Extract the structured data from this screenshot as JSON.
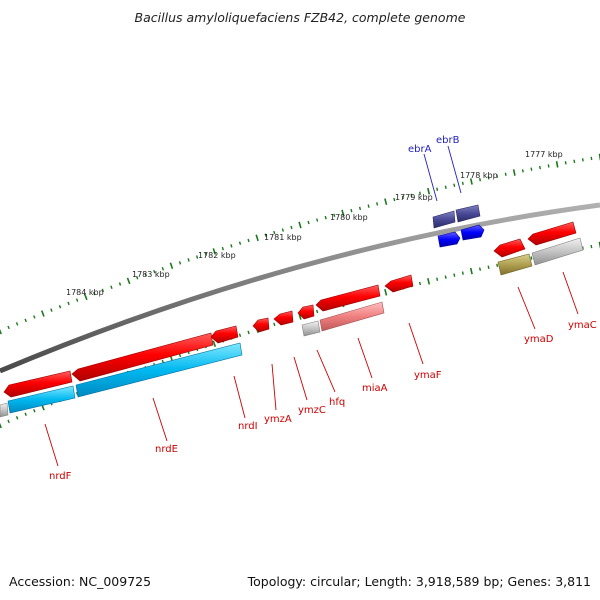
{
  "title": "Bacillus amyloliquefaciens FZB42, complete genome",
  "footer": {
    "accession": "Accession: NC_009725",
    "summary": "Topology: circular; Length: 3,918,589 bp; Genes: 3,811"
  },
  "colors": {
    "backbone": "#7a7a7a",
    "tick": "#1a7a1a",
    "forward_label": "#2222bb",
    "reverse_label": "#cc0000"
  },
  "kbp_labels": [
    "1784 kbp",
    "1783 kbp",
    "1782 kbp",
    "1781 kbp",
    "1780 kbp",
    "1779 kbp",
    "1778 kbp",
    "1777 kbp"
  ],
  "genes_forward": [
    {
      "name": "ebrA",
      "color": "#3b3b8c"
    },
    {
      "name": "ebrB",
      "color": "#3b3b8c"
    }
  ],
  "genes_reverse": [
    {
      "name": "nrdF",
      "color": "#ff0000"
    },
    {
      "name": "nrdE",
      "color": "#ff0000"
    },
    {
      "name": "nrdI",
      "color": "#ff0000"
    },
    {
      "name": "ymzA",
      "color": "#ff0000"
    },
    {
      "name": "ymzC",
      "color": "#ff0000"
    },
    {
      "name": "hfq",
      "color": "#ff0000"
    },
    {
      "name": "miaA",
      "color": "#ff0000"
    },
    {
      "name": "ymaF",
      "color": "#ff0000"
    },
    {
      "name": "ymaD",
      "color": "#ff0000"
    },
    {
      "name": "ymaC",
      "color": "#ff0000"
    }
  ]
}
